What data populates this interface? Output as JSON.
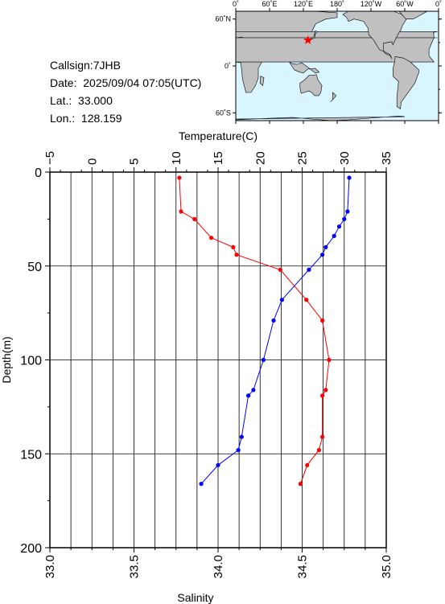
{
  "station": {
    "callsign_label": "Callsign:",
    "callsign": "7JHB",
    "date_label": "Date:",
    "date": "2025/09/04 07:05(UTC)",
    "lat_label": "Lat.:",
    "lat": "33.000",
    "lon_label": "Lon.:",
    "lon": "128.159"
  },
  "map": {
    "lon_ticks": [
      "0˚",
      "60˚E",
      "120˚E",
      "180˚",
      "120˚W",
      "60˚W",
      "0˚"
    ],
    "lat_ticks": [
      "60˚N",
      "0˚",
      "60˚S"
    ],
    "ocean_color": "#d9f5ff",
    "land_color": "#c0c0c0",
    "marker_color": "#ff0000",
    "marker_lat": 33.0,
    "marker_lon": 128.159
  },
  "chart_data": {
    "type": "line",
    "top_axis": {
      "label": "Temperature(C)",
      "range": [
        -5,
        35
      ],
      "ticks": [
        "−5",
        "0",
        "5",
        "10",
        "15",
        "20",
        "25",
        "30",
        "35"
      ]
    },
    "bottom_axis": {
      "label": "Salinity",
      "range": [
        33.0,
        35.0
      ],
      "ticks": [
        "33.0",
        "33.5",
        "34.0",
        "34.5",
        "35.0"
      ]
    },
    "y_axis": {
      "label": "Depth(m)",
      "range": [
        0,
        200
      ],
      "inverted": true,
      "ticks": [
        "0",
        "50",
        "100",
        "150",
        "200"
      ]
    },
    "grid": true,
    "series": [
      {
        "color": "#ff0000",
        "axis": "top",
        "points": [
          [
            10.4,
            3
          ],
          [
            10.6,
            21
          ],
          [
            12.2,
            25
          ],
          [
            14.2,
            35
          ],
          [
            16.8,
            40
          ],
          [
            17.2,
            44
          ],
          [
            22.4,
            52
          ],
          [
            25.5,
            68
          ],
          [
            27.4,
            79
          ],
          [
            28.2,
            100
          ],
          [
            27.8,
            116
          ],
          [
            27.4,
            119
          ],
          [
            27.4,
            141
          ],
          [
            27.0,
            148
          ],
          [
            25.6,
            156
          ],
          [
            24.8,
            166
          ]
        ]
      },
      {
        "color": "#0000ff",
        "axis": "bottom",
        "points": [
          [
            34.78,
            3
          ],
          [
            34.77,
            21
          ],
          [
            34.75,
            25
          ],
          [
            34.72,
            29
          ],
          [
            34.69,
            34
          ],
          [
            34.64,
            40
          ],
          [
            34.62,
            44
          ],
          [
            34.54,
            52
          ],
          [
            34.38,
            68
          ],
          [
            34.33,
            79
          ],
          [
            34.27,
            100
          ],
          [
            34.21,
            116
          ],
          [
            34.18,
            119
          ],
          [
            34.14,
            141
          ],
          [
            34.12,
            148
          ],
          [
            34.0,
            156
          ],
          [
            33.9,
            166
          ]
        ]
      }
    ]
  }
}
